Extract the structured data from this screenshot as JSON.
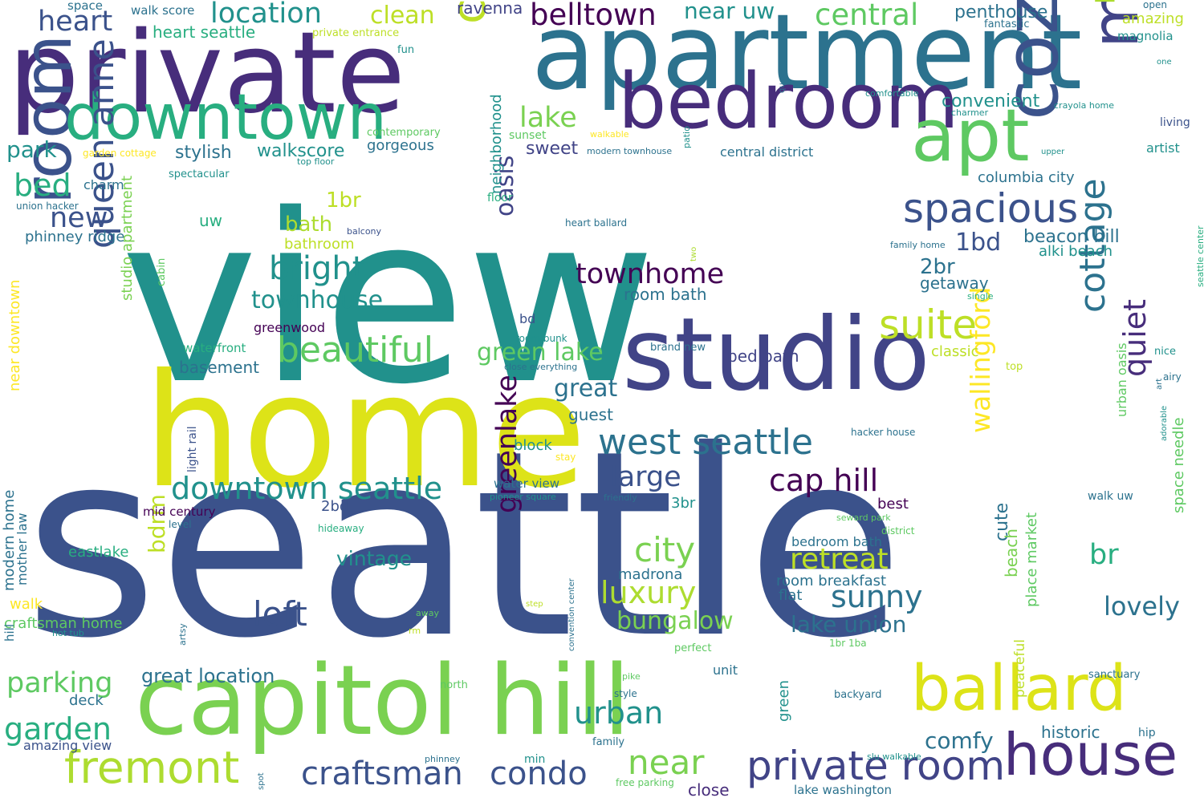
{
  "colors": {
    "background": "#ffffff",
    "palette": [
      "#440154",
      "#472d7b",
      "#3b528b",
      "#2c728e",
      "#21918c",
      "#28ae80",
      "#5ec962",
      "#addc30",
      "#fde725"
    ]
  },
  "words": [
    {
      "text": "view",
      "color": "#21918c"
    },
    {
      "text": "seattle",
      "color": "#3b528b"
    },
    {
      "text": "home",
      "color": "#dde318"
    },
    {
      "text": "apartment",
      "color": "#2c728e"
    },
    {
      "text": "private",
      "color": "#472d7b"
    },
    {
      "text": "studio",
      "color": "#414487"
    },
    {
      "text": "capitol hill",
      "color": "#7ad151"
    },
    {
      "text": "cozy",
      "color": "#3b528b"
    },
    {
      "text": "bedroom",
      "color": "#472d7b"
    },
    {
      "text": "room",
      "color": "#3b528b"
    },
    {
      "text": "downtown",
      "color": "#28ae80"
    },
    {
      "text": "modern",
      "color": "#414487"
    },
    {
      "text": "apt",
      "color": "#5ec962"
    },
    {
      "text": "charming",
      "color": "#bddf26"
    },
    {
      "text": "ballard",
      "color": "#dde318"
    },
    {
      "text": "house",
      "color": "#472d7b"
    },
    {
      "text": "queen anne",
      "color": "#3b528b"
    },
    {
      "text": "fremont",
      "color": "#addc30"
    },
    {
      "text": "private room",
      "color": "#414487"
    },
    {
      "text": "west seattle",
      "color": "#2c728e"
    },
    {
      "text": "spacious",
      "color": "#3b528b"
    },
    {
      "text": "cottage",
      "color": "#2c728e"
    },
    {
      "text": "suite",
      "color": "#bddf26"
    },
    {
      "text": "downtown seattle",
      "color": "#21918c"
    },
    {
      "text": "craftsman",
      "color": "#3b528b"
    },
    {
      "text": "condo",
      "color": "#3b528b"
    },
    {
      "text": "beautiful",
      "color": "#5ec962"
    },
    {
      "text": "cap hill",
      "color": "#440154"
    },
    {
      "text": "belltown",
      "color": "#440154"
    },
    {
      "text": "location",
      "color": "#21918c"
    },
    {
      "text": "central",
      "color": "#5ec962"
    },
    {
      "text": "heart",
      "color": "#3b528b"
    },
    {
      "text": "pike place",
      "color": "#addc30"
    },
    {
      "text": "quiet",
      "color": "#472d7b"
    },
    {
      "text": "greenlake",
      "color": "#440154"
    },
    {
      "text": "wallingford",
      "color": "#fde725"
    },
    {
      "text": "city",
      "color": "#7ad151"
    },
    {
      "text": "luxury",
      "color": "#addc30"
    },
    {
      "text": "near",
      "color": "#7ad151"
    },
    {
      "text": "garden",
      "color": "#28ae80"
    },
    {
      "text": "parking",
      "color": "#5ec962"
    },
    {
      "text": "townhome",
      "color": "#440154"
    },
    {
      "text": "bright",
      "color": "#21918c"
    },
    {
      "text": "oasis",
      "color": "#414487"
    },
    {
      "text": "retreat",
      "color": "#bddf26"
    },
    {
      "text": "sunny",
      "color": "#2c728e"
    },
    {
      "text": "loft",
      "color": "#3b528b"
    },
    {
      "text": "urban",
      "color": "#21918c"
    },
    {
      "text": "green lake",
      "color": "#5ec962"
    },
    {
      "text": "lake union",
      "color": "#2c728e"
    },
    {
      "text": "lovely",
      "color": "#2c728e"
    },
    {
      "text": "comfy",
      "color": "#2c728e"
    },
    {
      "text": "new",
      "color": "#3b528b"
    },
    {
      "text": "bed",
      "color": "#28ae80"
    },
    {
      "text": "lake",
      "color": "#7ad151"
    },
    {
      "text": "large",
      "color": "#3b528b"
    },
    {
      "text": "townhouse",
      "color": "#21918c"
    },
    {
      "text": "bungalow",
      "color": "#7ad151"
    },
    {
      "text": "clean",
      "color": "#bddf26"
    },
    {
      "text": "near uw",
      "color": "#21918c"
    },
    {
      "text": "br",
      "color": "#28ae80"
    },
    {
      "text": "great",
      "color": "#2c728e"
    },
    {
      "text": "bdrm",
      "color": "#bddf26"
    },
    {
      "text": "park",
      "color": "#21918c"
    },
    {
      "text": "1br",
      "color": "#bddf26"
    },
    {
      "text": "2br",
      "color": "#2c728e"
    },
    {
      "text": "1bd",
      "color": "#3b528b"
    },
    {
      "text": "beacon hill",
      "color": "#2c728e"
    },
    {
      "text": "bath",
      "color": "#addc30"
    },
    {
      "text": "cute",
      "color": "#2c728e"
    },
    {
      "text": "vintage",
      "color": "#21918c"
    },
    {
      "text": "great location",
      "color": "#2c728e"
    },
    {
      "text": "historic",
      "color": "#2c728e"
    },
    {
      "text": "one bedroom",
      "color": "#2c728e"
    },
    {
      "text": "north seattle",
      "color": "#21918c"
    },
    {
      "text": "close",
      "color": "#472d7b"
    },
    {
      "text": "convenient",
      "color": "#21918c"
    },
    {
      "text": "penthouse",
      "color": "#2c728e"
    },
    {
      "text": "stylish",
      "color": "#2c728e"
    },
    {
      "text": "walkscore",
      "color": "#21918c"
    },
    {
      "text": "heart seattle",
      "color": "#28ae80"
    },
    {
      "text": "sweet",
      "color": "#414487"
    },
    {
      "text": "gorgeous",
      "color": "#2c728e"
    },
    {
      "text": "getaway",
      "color": "#2c728e"
    },
    {
      "text": "alki beach",
      "color": "#21918c"
    },
    {
      "text": "columbia city",
      "color": "#2c728e"
    },
    {
      "text": "central district",
      "color": "#2c728e"
    },
    {
      "text": "neighborhood",
      "color": "#21918c"
    },
    {
      "text": "amazing",
      "color": "#bddf26"
    },
    {
      "text": "magnolia",
      "color": "#21918c"
    },
    {
      "text": "artist",
      "color": "#21918c"
    },
    {
      "text": "phinney ridge",
      "color": "#2c728e"
    },
    {
      "text": "uw",
      "color": "#28ae80"
    },
    {
      "text": "ravenna",
      "color": "#414487"
    },
    {
      "text": "room bath",
      "color": "#2c728e"
    },
    {
      "text": "bed bath",
      "color": "#414487"
    },
    {
      "text": "classic",
      "color": "#bddf26"
    },
    {
      "text": "guest",
      "color": "#2c728e"
    },
    {
      "text": "basement",
      "color": "#2c728e"
    },
    {
      "text": "bathroom",
      "color": "#bddf26"
    },
    {
      "text": "studio apartment",
      "color": "#7ad151"
    },
    {
      "text": "near downtown",
      "color": "#fde725"
    },
    {
      "text": "modern home",
      "color": "#2c728e"
    },
    {
      "text": "mother law",
      "color": "#2c728e"
    },
    {
      "text": "walk",
      "color": "#fde725"
    },
    {
      "text": "craftsman home",
      "color": "#5ec962"
    },
    {
      "text": "eastlake",
      "color": "#28ae80"
    },
    {
      "text": "deck",
      "color": "#2c728e"
    },
    {
      "text": "amazing view",
      "color": "#3b528b"
    },
    {
      "text": "madrona",
      "color": "#2c728e"
    },
    {
      "text": "flat",
      "color": "#2c728e"
    },
    {
      "text": "room breakfast",
      "color": "#2c728e"
    },
    {
      "text": "bedroom bath",
      "color": "#2c728e"
    },
    {
      "text": "place market",
      "color": "#5ec962"
    },
    {
      "text": "beach",
      "color": "#7ad151"
    },
    {
      "text": "space needle",
      "color": "#5ec962"
    },
    {
      "text": "urban oasis",
      "color": "#5ec962"
    },
    {
      "text": "peaceful",
      "color": "#bddf26"
    },
    {
      "text": "2bd",
      "color": "#3b528b"
    },
    {
      "text": "3br",
      "color": "#21918c"
    },
    {
      "text": "best",
      "color": "#440154"
    },
    {
      "text": "green",
      "color": "#21918c"
    },
    {
      "text": "block",
      "color": "#21918c"
    },
    {
      "text": "water view",
      "color": "#2c728e"
    },
    {
      "text": "greenwood",
      "color": "#440154"
    },
    {
      "text": "waterfront",
      "color": "#28ae80"
    },
    {
      "text": "mid century",
      "color": "#440154"
    },
    {
      "text": "hill",
      "color": "#2c728e"
    },
    {
      "text": "bd",
      "color": "#3b528b"
    },
    {
      "text": "light rail",
      "color": "#3b528b"
    },
    {
      "text": "charm",
      "color": "#2c728e"
    },
    {
      "text": "space",
      "color": "#2c728e"
    },
    {
      "text": "walk score",
      "color": "#2c728e"
    },
    {
      "text": "private entrance",
      "color": "#bddf26"
    },
    {
      "text": "fun",
      "color": "#21918c"
    },
    {
      "text": "contemporary",
      "color": "#5ec962"
    },
    {
      "text": "sunset",
      "color": "#5ec962"
    },
    {
      "text": "walkable",
      "color": "#fde725"
    },
    {
      "text": "garden cottage",
      "color": "#fde725"
    },
    {
      "text": "top floor",
      "color": "#21918c"
    },
    {
      "text": "spectacular",
      "color": "#21918c"
    },
    {
      "text": "union hacker",
      "color": "#2c728e"
    },
    {
      "text": "floor",
      "color": "#28ae80"
    },
    {
      "text": "balcony",
      "color": "#3b528b"
    },
    {
      "text": "heart ballard",
      "color": "#2c728e"
    },
    {
      "text": "modern townhouse",
      "color": "#2c728e"
    },
    {
      "text": "patio",
      "color": "#21918c"
    },
    {
      "text": "two",
      "color": "#addc30"
    },
    {
      "text": "cabin",
      "color": "#5ec962"
    },
    {
      "text": "room bunk",
      "color": "#21918c"
    },
    {
      "text": "close everything",
      "color": "#2c728e"
    },
    {
      "text": "brand new",
      "color": "#2c728e"
    },
    {
      "text": "fantastic",
      "color": "#2c728e"
    },
    {
      "text": "one",
      "color": "#21918c"
    },
    {
      "text": "open",
      "color": "#2c728e"
    },
    {
      "text": "queen",
      "color": "#2c728e"
    },
    {
      "text": "comfortable",
      "color": "#21918c"
    },
    {
      "text": "crayola home",
      "color": "#21918c"
    },
    {
      "text": "charmer",
      "color": "#21918c"
    },
    {
      "text": "living",
      "color": "#3b528b"
    },
    {
      "text": "upper",
      "color": "#21918c"
    },
    {
      "text": "family home",
      "color": "#2c728e"
    },
    {
      "text": "single",
      "color": "#28ae80"
    },
    {
      "text": "seattle center",
      "color": "#28ae80"
    },
    {
      "text": "nice",
      "color": "#21918c"
    },
    {
      "text": "airy",
      "color": "#2c728e"
    },
    {
      "text": "top",
      "color": "#bddf26"
    },
    {
      "text": "art",
      "color": "#2c728e"
    },
    {
      "text": "adorable",
      "color": "#21918c"
    },
    {
      "text": "hacker house",
      "color": "#2c728e"
    },
    {
      "text": "stay",
      "color": "#fde725"
    },
    {
      "text": "pioneer square",
      "color": "#21918c"
    },
    {
      "text": "friendly",
      "color": "#2c728e"
    },
    {
      "text": "walk uw",
      "color": "#2c728e"
    },
    {
      "text": "seward park",
      "color": "#5ec962"
    },
    {
      "text": "district",
      "color": "#5ec962"
    },
    {
      "text": "hideaway",
      "color": "#28ae80"
    },
    {
      "text": "level",
      "color": "#2c728e"
    },
    {
      "text": "step",
      "color": "#bddf26"
    },
    {
      "text": "away",
      "color": "#5ec962"
    },
    {
      "text": "rm",
      "color": "#bddf26"
    },
    {
      "text": "hot tub",
      "color": "#21918c"
    },
    {
      "text": "artsy",
      "color": "#2c728e"
    },
    {
      "text": "convention center",
      "color": "#2c728e"
    },
    {
      "text": "perfect",
      "color": "#5ec962"
    },
    {
      "text": "1br 1ba",
      "color": "#5ec962"
    },
    {
      "text": "unit",
      "color": "#2c728e"
    },
    {
      "text": "pike",
      "color": "#5ec962"
    },
    {
      "text": "style",
      "color": "#2c728e"
    },
    {
      "text": "north",
      "color": "#5ec962"
    },
    {
      "text": "backyard",
      "color": "#2c728e"
    },
    {
      "text": "sanctuary",
      "color": "#2c728e"
    },
    {
      "text": "hip",
      "color": "#2c728e"
    },
    {
      "text": "family",
      "color": "#2c728e"
    },
    {
      "text": "phinney",
      "color": "#2c728e"
    },
    {
      "text": "min",
      "color": "#21918c"
    },
    {
      "text": "slu walkable",
      "color": "#21918c"
    },
    {
      "text": "spot",
      "color": "#2c728e"
    },
    {
      "text": "free parking",
      "color": "#5ec962"
    },
    {
      "text": "lake washington",
      "color": "#2c728e"
    }
  ]
}
